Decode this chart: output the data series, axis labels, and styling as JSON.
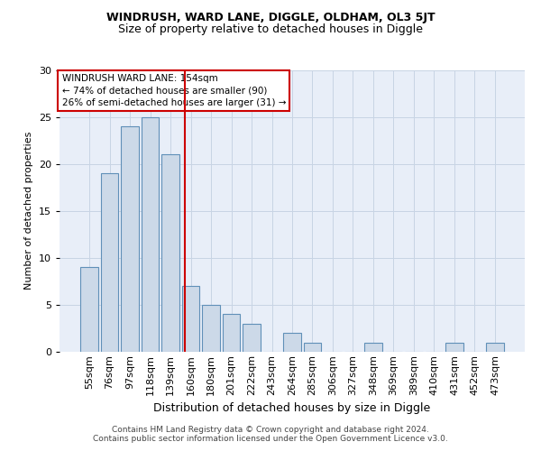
{
  "title1": "WINDRUSH, WARD LANE, DIGGLE, OLDHAM, OL3 5JT",
  "title2": "Size of property relative to detached houses in Diggle",
  "xlabel": "Distribution of detached houses by size in Diggle",
  "ylabel": "Number of detached properties",
  "categories": [
    "55sqm",
    "76sqm",
    "97sqm",
    "118sqm",
    "139sqm",
    "160sqm",
    "180sqm",
    "201sqm",
    "222sqm",
    "243sqm",
    "264sqm",
    "285sqm",
    "306sqm",
    "327sqm",
    "348sqm",
    "369sqm",
    "389sqm",
    "410sqm",
    "431sqm",
    "452sqm",
    "473sqm"
  ],
  "values": [
    9,
    19,
    24,
    25,
    21,
    7,
    5,
    4,
    3,
    0,
    2,
    1,
    0,
    0,
    1,
    0,
    0,
    0,
    1,
    0,
    1
  ],
  "bar_color": "#ccd9e8",
  "bar_edge_color": "#6090b8",
  "vline_position": 4.72,
  "vline_color": "#cc0000",
  "annotation_title": "WINDRUSH WARD LANE: 154sqm",
  "annotation_line2": "← 74% of detached houses are smaller (90)",
  "annotation_line3": "26% of semi-detached houses are larger (31) →",
  "annotation_box_facecolor": "#ffffff",
  "annotation_box_edgecolor": "#cc0000",
  "ylim": [
    0,
    30
  ],
  "yticks": [
    0,
    5,
    10,
    15,
    20,
    25,
    30
  ],
  "grid_color": "#c8d4e4",
  "background_color": "#e8eef8",
  "footer1": "Contains HM Land Registry data © Crown copyright and database right 2024.",
  "footer2": "Contains public sector information licensed under the Open Government Licence v3.0.",
  "title1_fontsize": 9,
  "title2_fontsize": 9,
  "xlabel_fontsize": 9,
  "ylabel_fontsize": 8,
  "tick_fontsize": 8,
  "annotation_fontsize": 7.5,
  "footer_fontsize": 6.5
}
